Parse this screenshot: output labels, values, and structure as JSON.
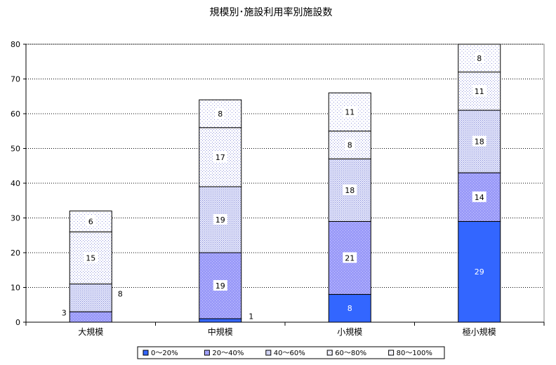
{
  "chart_data": {
    "type": "bar",
    "stacked": true,
    "title": "規模別･施設利用率別施設数",
    "categories": [
      "大規模",
      "中規模",
      "小規模",
      "極小規模"
    ],
    "ylim": [
      0,
      80
    ],
    "yticks": [
      0,
      10,
      20,
      30,
      40,
      50,
      60,
      70,
      80
    ],
    "grid": true,
    "legend_position": "bottom",
    "series": [
      {
        "name": "0～20%",
        "values": [
          0,
          1,
          8,
          29
        ],
        "color": "#3366ff",
        "pattern": "solid"
      },
      {
        "name": "20～40%",
        "values": [
          3,
          19,
          21,
          14
        ],
        "color": "#9999ff",
        "pattern": "light"
      },
      {
        "name": "40～60%",
        "values": [
          8,
          19,
          18,
          18
        ],
        "color": "#c9cdf2",
        "pattern": "dots-dense"
      },
      {
        "name": "60～80%",
        "values": [
          15,
          17,
          8,
          11
        ],
        "color": "#f4f4fa",
        "pattern": "dots-mid"
      },
      {
        "name": "80～100%",
        "values": [
          6,
          8,
          11,
          8
        ],
        "color": "#ffffff",
        "pattern": "dots-sparse"
      }
    ],
    "data_label_labels": [
      "",
      "1",
      "8",
      "29",
      "3",
      "19",
      "21",
      "14",
      "8",
      "19",
      "18",
      "18",
      "15",
      "17",
      "8",
      "11",
      "6",
      "8",
      "11",
      "8"
    ]
  }
}
